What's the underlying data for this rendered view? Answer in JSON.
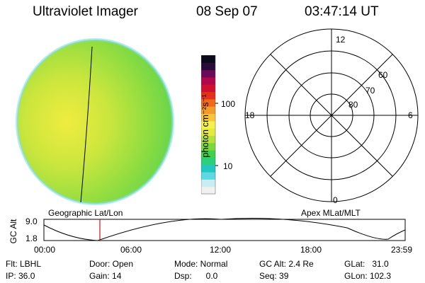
{
  "header": {
    "instrument": "Ultraviolet Imager",
    "date": "08 Sep 07",
    "time": "03:47:14 UT"
  },
  "colorbar": {
    "label": "photon cm⁻²s⁻¹",
    "ticks": [
      "100",
      "10"
    ],
    "colors": [
      "#f0f0f0",
      "#c8eef2",
      "#5fd8e6",
      "#22c8c0",
      "#2ccf7a",
      "#3fd24a",
      "#7bd83a",
      "#b6e03a",
      "#e4ea3c",
      "#f6f04a",
      "#f7c53a",
      "#f49a28",
      "#f06818",
      "#e33018",
      "#d01030",
      "#b0084a",
      "#6b0a58",
      "#2a0a3a",
      "#0a0a1a"
    ]
  },
  "polar": {
    "mlt_labels": [
      "12",
      "18",
      "6",
      "0"
    ],
    "lat_labels": [
      "60",
      "70",
      "80"
    ]
  },
  "map_labels": {
    "left": "Geographic Lat/Lon",
    "right": "Apex MLat/MLT"
  },
  "altitude_plot": {
    "ylabel": "GC Alt",
    "yticks": [
      "9.0",
      "1.8"
    ],
    "xticks": [
      "00:00",
      "06:00",
      "12:00",
      "18:00",
      "23:59"
    ]
  },
  "info": {
    "filter": "Flt: LBHL",
    "ip": "IP: 36.0",
    "door": "Door: Open",
    "gain": "Gain: 14",
    "mode": "Mode: Normal",
    "dsp": "Dsp:      0.0",
    "gc_alt": "GC Alt: 2.4 Re",
    "seq": "Seq: 39",
    "glat": "GLat:   31.0",
    "glon": "GLon: 102.3"
  }
}
